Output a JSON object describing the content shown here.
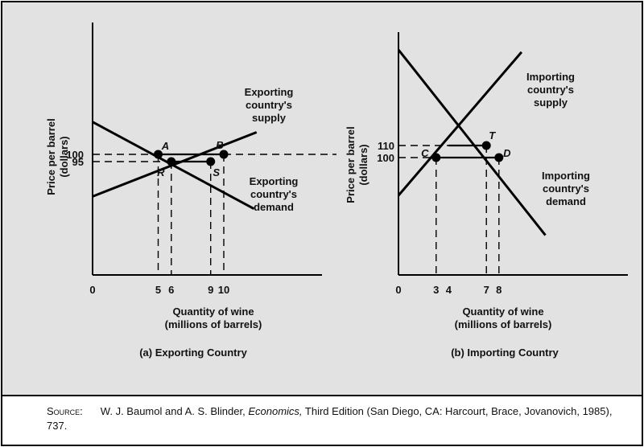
{
  "chart_data": [
    {
      "type": "line",
      "caption": "(a) Exporting Country",
      "ylabel": "Price per barrel\n(dollars)",
      "xlabel": "Quantity of wine\n(millions of barrels)",
      "origin_label": "0",
      "x_ticks": [
        5,
        6,
        9,
        10
      ],
      "y_ticks": [
        100,
        95
      ],
      "series": [
        {
          "name": "Exporting\ncountry's\nsupply",
          "points": [
            [
              0,
              70.9
            ],
            [
              12.5,
              115.3
            ]
          ]
        },
        {
          "name": "Exporting\ncountry's\ndemand",
          "points": [
            [
              0,
              122.4
            ],
            [
              12.3,
              62.4
            ]
          ]
        }
      ],
      "annotations": [
        {
          "label": "A",
          "x": 5,
          "y": 100
        },
        {
          "label": "B",
          "x": 10,
          "y": 100
        },
        {
          "label": "R",
          "x": 6,
          "y": 95
        },
        {
          "label": "S",
          "x": 9,
          "y": 95
        }
      ],
      "horizontal_segments": [
        {
          "y": 100,
          "x": [
            5,
            10
          ]
        },
        {
          "y": 95,
          "x": [
            6,
            9
          ]
        }
      ]
    },
    {
      "type": "line",
      "caption": "(b) Importing Country",
      "ylabel": "Price per barrel\n(dollars)",
      "xlabel": "Quantity of wine\n(millions of barrels)",
      "origin_label": "0",
      "x_ticks": [
        3,
        4,
        7,
        8
      ],
      "y_ticks": [
        110,
        100
      ],
      "series": [
        {
          "name": "Importing\ncountry's\nsupply",
          "points": [
            [
              0,
              68.6
            ],
            [
              9.8,
              187.5
            ]
          ]
        },
        {
          "name": "Importing\ncountry's\ndemand",
          "points": [
            [
              0,
              189.4
            ],
            [
              11.7,
              35.6
            ]
          ]
        }
      ],
      "annotations": [
        {
          "label": "C",
          "x": 3,
          "y": 100
        },
        {
          "label": "T",
          "x": 7,
          "y": 110
        },
        {
          "label": "D",
          "x": 8,
          "y": 100
        }
      ],
      "horizontal_segments": [
        {
          "y": 110,
          "x": [
            4,
            7
          ]
        },
        {
          "y": 100,
          "x": [
            3,
            8
          ]
        }
      ]
    }
  ],
  "source": {
    "prefix": "Source:",
    "authors": "W. J. Baumol and A. S. Blinder, ",
    "title": "Economics,",
    "rest": " Third Edition (San Diego, CA: Harcourt, Brace, Jovanovich, 1985), 737."
  }
}
